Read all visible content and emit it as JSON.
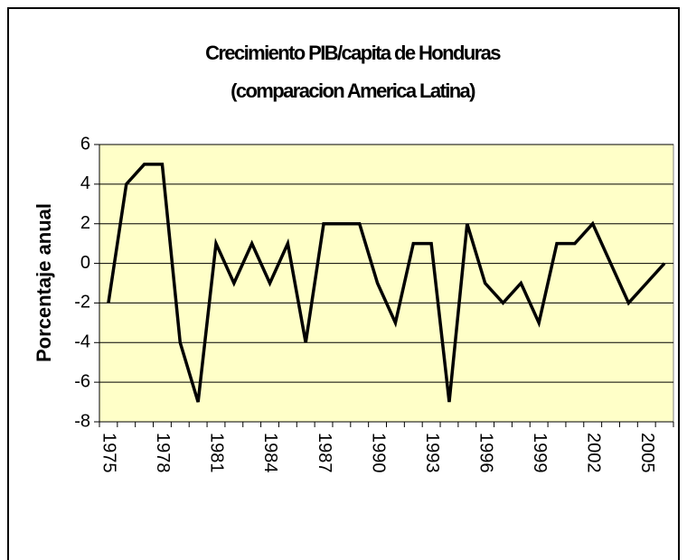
{
  "chart_data": {
    "type": "line",
    "title": [
      "Crecimiento PIB/capita de Honduras",
      "(comparacion America Latina)"
    ],
    "y_label": "Porcentaje anual",
    "categories": [
      "1975",
      null,
      null,
      "1978",
      null,
      null,
      "1981",
      null,
      null,
      "1984",
      null,
      null,
      "1987",
      null,
      null,
      "1990",
      null,
      null,
      "1993",
      null,
      null,
      "1996",
      null,
      null,
      "1999",
      null,
      null,
      "2002",
      null,
      null,
      "2005",
      null
    ],
    "values": [
      -2,
      4,
      5,
      5,
      -4,
      -7,
      1,
      -1,
      1,
      -1,
      1,
      -4,
      2,
      2,
      2,
      -1,
      -3,
      1,
      1,
      -7,
      2,
      -1,
      -2,
      -1,
      -3,
      1,
      1,
      2,
      0,
      -2,
      -1,
      0
    ],
    "color": "#000000",
    "ylim": [
      -8,
      6
    ],
    "yticks": [
      -8,
      -6,
      -4,
      -2,
      0,
      2,
      4,
      6
    ],
    "grid": true,
    "plot_background": "#ffffc8"
  }
}
